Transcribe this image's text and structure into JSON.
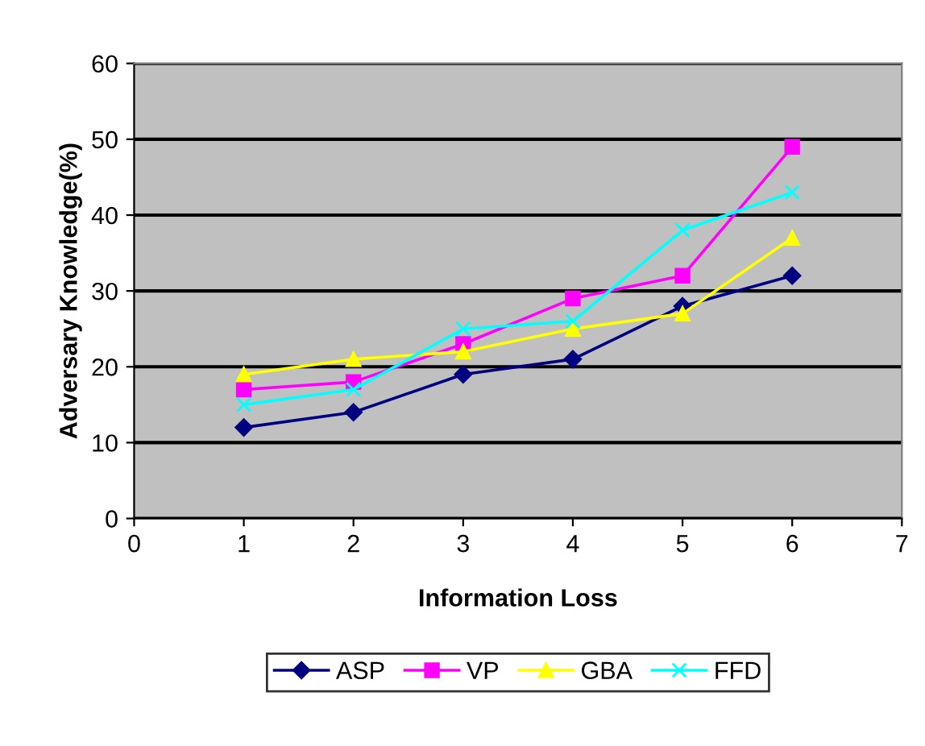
{
  "chart_data": {
    "type": "line",
    "xlabel": "Information Loss",
    "ylabel": "Adversary Knowledge(%)",
    "x": [
      1,
      2,
      3,
      4,
      5,
      6
    ],
    "series": [
      {
        "name": "ASP",
        "color": "#000080",
        "marker": "diamond",
        "values": [
          12,
          14,
          19,
          21,
          28,
          32
        ]
      },
      {
        "name": "VP",
        "color": "#ff00ff",
        "marker": "square",
        "values": [
          17,
          18,
          23,
          29,
          32,
          49
        ]
      },
      {
        "name": "GBA",
        "color": "#ffff00",
        "marker": "triangle",
        "values": [
          19,
          21,
          22,
          25,
          27,
          37
        ]
      },
      {
        "name": "FFD",
        "color": "#00ffff",
        "marker": "cross",
        "values": [
          15,
          17,
          25,
          26,
          38,
          43
        ]
      }
    ],
    "xlim": [
      0,
      7
    ],
    "xticks": [
      0,
      1,
      2,
      3,
      4,
      5,
      6,
      7
    ],
    "ylim": [
      0,
      60
    ],
    "yticks": [
      0,
      10,
      20,
      30,
      40,
      50,
      60
    ],
    "grid": "y",
    "legend": "bottom",
    "line_style": "solid"
  }
}
